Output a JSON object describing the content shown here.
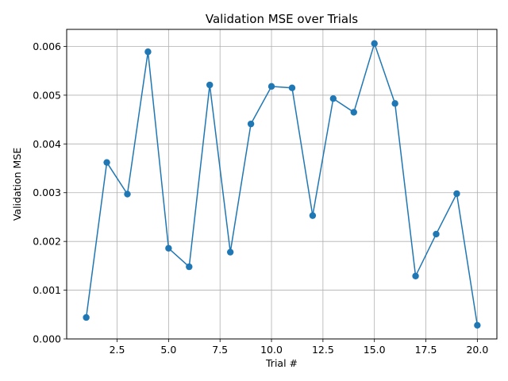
{
  "chart_data": {
    "type": "line",
    "title": "Validation MSE over Trials",
    "xlabel": "Trial #",
    "ylabel": "Validation MSE",
    "xlim": [
      0.05,
      20.95
    ],
    "ylim": [
      0.0,
      0.00635
    ],
    "xticks": [
      2.5,
      5.0,
      7.5,
      10.0,
      12.5,
      15.0,
      17.5,
      20.0
    ],
    "xtick_labels": [
      "2.5",
      "5.0",
      "7.5",
      "10.0",
      "12.5",
      "15.0",
      "17.5",
      "20.0"
    ],
    "yticks": [
      0.0,
      0.001,
      0.002,
      0.003,
      0.004,
      0.005,
      0.006
    ],
    "ytick_labels": [
      "0.000",
      "0.001",
      "0.002",
      "0.003",
      "0.004",
      "0.005",
      "0.006"
    ],
    "grid": true,
    "markers": "circle",
    "line_color": "#1f77b4",
    "x": [
      1,
      2,
      3,
      4,
      5,
      6,
      7,
      8,
      9,
      10,
      11,
      12,
      13,
      14,
      15,
      16,
      17,
      18,
      19,
      20
    ],
    "y": [
      0.00044,
      0.00362,
      0.00297,
      0.00589,
      0.00186,
      0.00148,
      0.00521,
      0.00178,
      0.00441,
      0.00518,
      0.00515,
      0.00253,
      0.00493,
      0.00465,
      0.00606,
      0.00483,
      0.00129,
      0.00215,
      0.00298,
      0.00028
    ]
  }
}
